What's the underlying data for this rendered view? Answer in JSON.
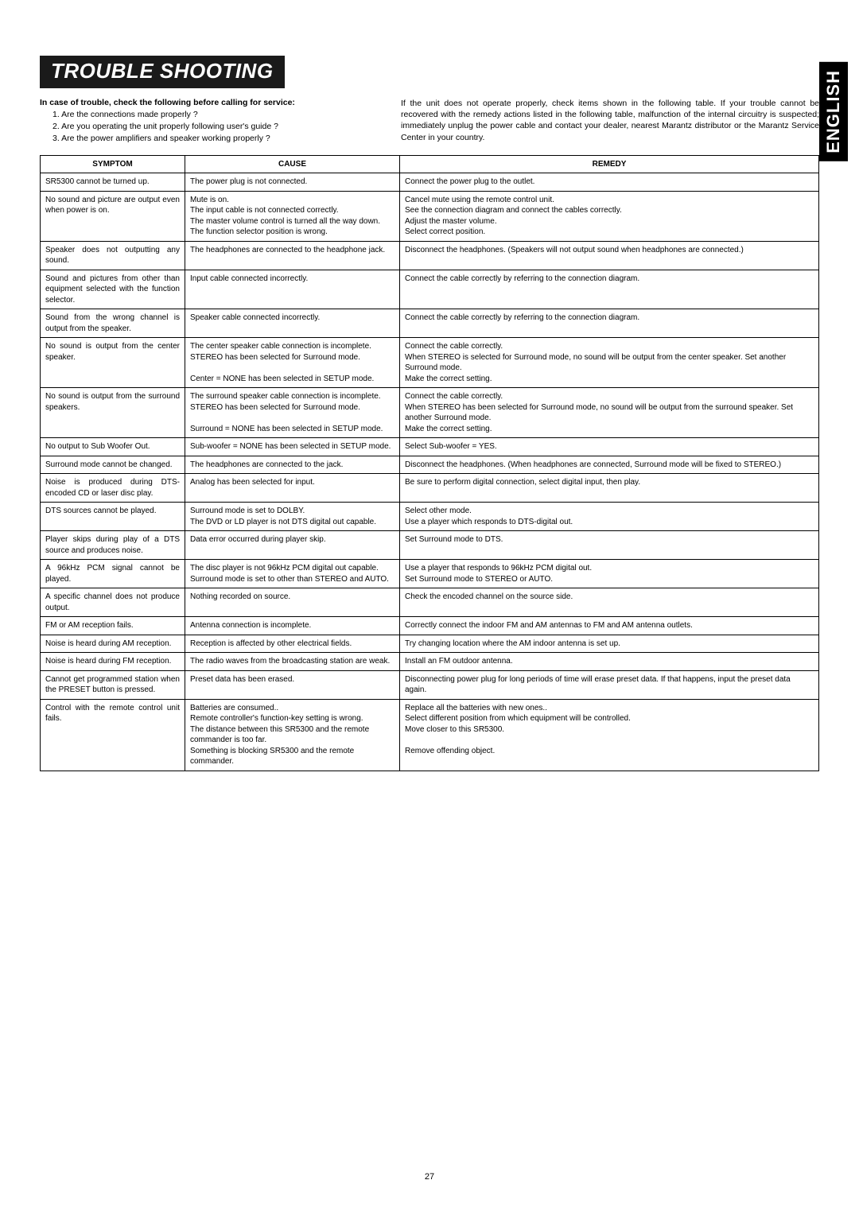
{
  "title": "TROUBLE SHOOTING",
  "tab": "ENGLISH",
  "intro_bold": "In case of trouble, check the following before calling for service:",
  "intro_items": [
    "1. Are the connections made properly ?",
    "2. Are you operating the unit properly following user's guide ?",
    "3. Are the power amplifiers and speaker working properly ?"
  ],
  "intro_right": "If the unit does not operate properly, check items shown in the following table.\nIf your trouble cannot be recovered with the remedy actions listed in the following table, malfunction of the internal circuitry is suspected; immediately unplug the power cable and contact your dealer, nearest Marantz distributor or the Marantz Service Center in your country.",
  "headers": {
    "symptom": "SYMPTOM",
    "cause": "CAUSE",
    "remedy": "REMEDY"
  },
  "rows": [
    {
      "s": "SR5300 cannot be turned up.",
      "c": "The power plug is not connected.",
      "r": "Connect the power plug to the outlet."
    },
    {
      "s": "No sound and picture are output even when power is on.",
      "c": "Mute is on.\nThe input cable is not connected correctly.\nThe master volume control is turned all the way down.\nThe function selector position is wrong.",
      "r": "Cancel mute using the remote control unit.\nSee the connection diagram and connect the cables correctly.\nAdjust the master volume.\nSelect correct position."
    },
    {
      "s": "Speaker does not outputting any sound.",
      "c": "The headphones are connected to the headphone jack.",
      "r": "Disconnect the headphones. (Speakers will not output sound when headphones are connected.)"
    },
    {
      "s": "Sound and pictures from other than equipment selected with the function selector.",
      "c": "Input cable connected incorrectly.",
      "r": "Connect the cable correctly by referring to the connection diagram."
    },
    {
      "s": "Sound from the wrong channel is output from the speaker.",
      "c": "Speaker cable connected incorrectly.",
      "r": "Connect the cable correctly by referring to the connection diagram."
    },
    {
      "s": "No sound is output from the center speaker.",
      "c": "The center speaker cable connection is incomplete.\nSTEREO has been selected for Surround mode.\n\nCenter = NONE has been selected in SETUP mode.",
      "r": "Connect the cable correctly.\nWhen STEREO is selected for Surround mode, no sound will be output from the center speaker. Set another Surround mode.\nMake the correct setting."
    },
    {
      "s": "No sound is output from the surround speakers.",
      "c": "The surround speaker cable connection is incomplete.\nSTEREO has been selected for Surround mode.\n\nSurround = NONE has been selected in SETUP mode.",
      "r": "Connect the cable correctly.\nWhen STEREO has been selected for Surround mode, no sound will be output from the surround speaker. Set another Surround mode.\nMake the correct setting."
    },
    {
      "s": "No output to Sub Woofer Out.",
      "c": "Sub-woofer = NONE has been selected in SETUP mode.",
      "r": "Select Sub-woofer = YES."
    },
    {
      "s": "Surround mode cannot be changed.",
      "c": "The headphones are connected to the jack.",
      "r": "Disconnect the headphones. (When headphones are connected, Surround mode will be fixed to STEREO.)"
    },
    {
      "s": "Noise is produced during DTS-encoded CD or laser disc play.",
      "c": "Analog has been selected for input.",
      "r": "Be sure to perform digital connection, select digital input, then play."
    },
    {
      "s": "DTS sources cannot be played.",
      "c": "Surround mode is set to DOLBY.\nThe DVD or LD player is not DTS digital out capable.",
      "r": "Select other mode.\nUse a player which responds to DTS-digital out."
    },
    {
      "s": "Player skips during play of a DTS source and produces noise.",
      "c": "Data error occurred during player skip.",
      "r": "Set Surround mode to DTS."
    },
    {
      "s": "A 96kHz PCM signal cannot be played.",
      "c": "The disc player is not 96kHz PCM digital out capable.\nSurround mode is set to other than STEREO and AUTO.",
      "r": "Use a player that responds to 96kHz PCM digital out.\nSet Surround mode to STEREO or AUTO."
    },
    {
      "s": "A specific channel does not produce output.",
      "c": "Nothing recorded on source.",
      "r": "Check the encoded channel on the source side."
    },
    {
      "s": "FM or AM reception fails.",
      "c": "Antenna connection is incomplete.",
      "r": "Correctly connect the indoor FM and AM antennas to FM and AM antenna outlets."
    },
    {
      "s": "Noise is heard during AM reception.",
      "c": "Reception is affected by other electrical fields.",
      "r": "Try changing location where the AM indoor antenna is set up."
    },
    {
      "s": "Noise is heard during FM reception.",
      "c": "The radio waves from the broadcasting station are weak.",
      "r": "Install an FM outdoor antenna."
    },
    {
      "s": "Cannot get programmed station when the PRESET button is pressed.",
      "c": "Preset data has been erased.",
      "r": "Disconnecting power plug for long periods of time will erase preset data. If that happens, input the preset data again."
    },
    {
      "s": "Control with the remote control unit fails.",
      "c": "Batteries are consumed..\nRemote controller's function-key setting is wrong.\nThe distance between this SR5300 and the remote commander is too far.\nSomething is blocking SR5300 and the remote commander.",
      "r": "Replace all the batteries with new ones..\nSelect different position from which equipment will be controlled.\nMove closer to this SR5300.\n\nRemove offending object."
    }
  ],
  "page_number": "27",
  "colors": {
    "banner_bg": "#1a1a1a",
    "banner_fg": "#ffffff",
    "tab_bg": "#000000",
    "tab_fg": "#ffffff",
    "border": "#000000"
  }
}
